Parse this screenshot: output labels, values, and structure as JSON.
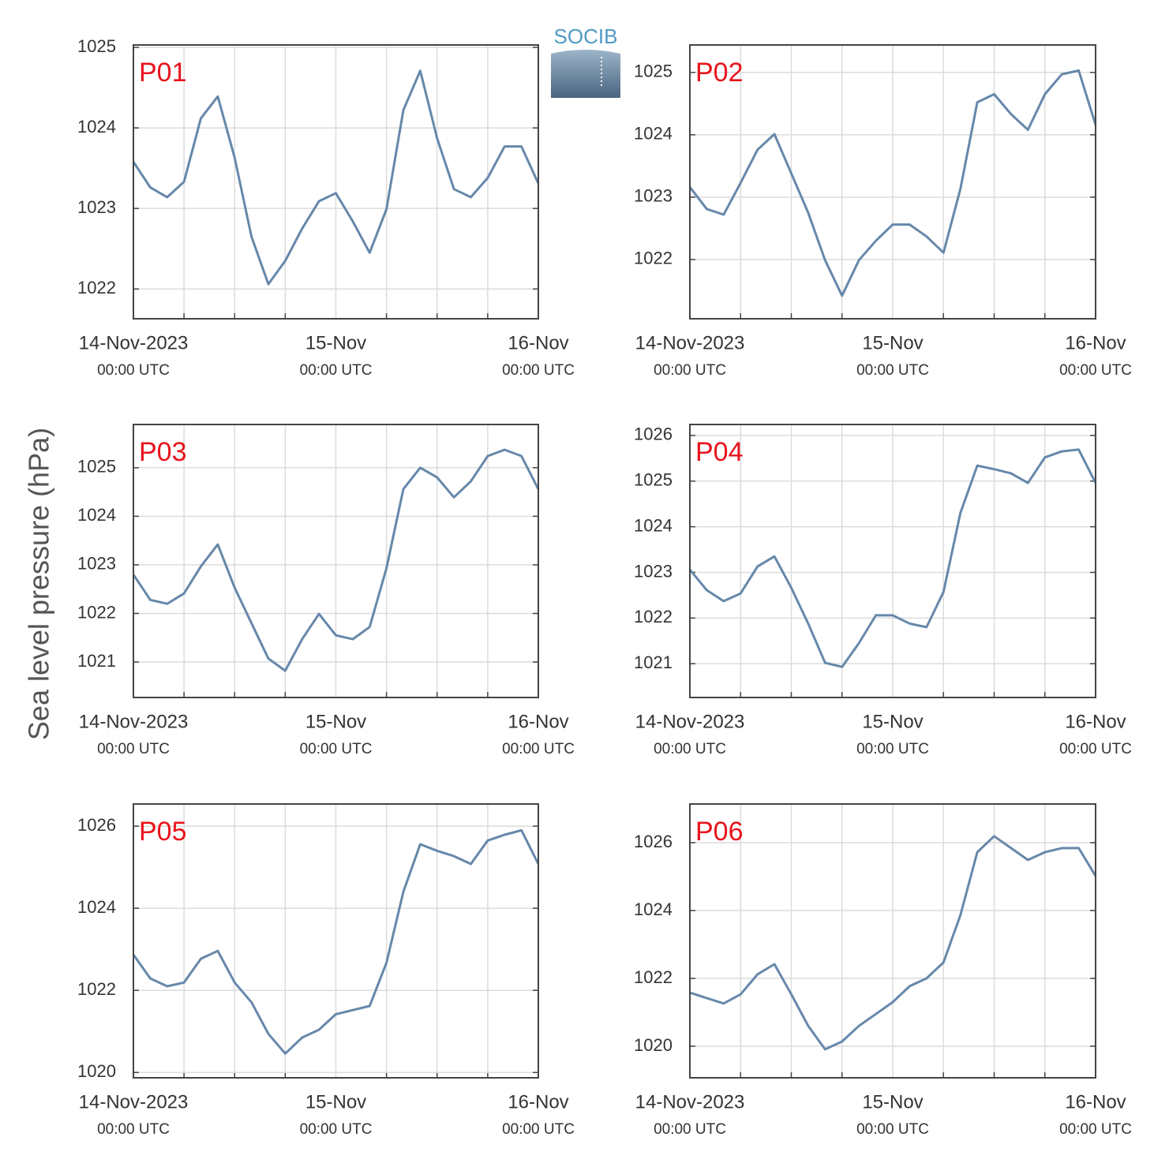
{
  "ylabel": "Sea level pressure (hPa)",
  "logo": "SOCIB",
  "chart_data": [
    {
      "type": "line",
      "title": "P01",
      "color": "#6688aa",
      "x": [
        "2023-11-14T00:00",
        "2023-11-14T02:00",
        "2023-11-14T04:00",
        "2023-11-14T06:00",
        "2023-11-14T08:00",
        "2023-11-14T10:00",
        "2023-11-14T12:00",
        "2023-11-14T14:00",
        "2023-11-14T16:00",
        "2023-11-14T18:00",
        "2023-11-14T20:00",
        "2023-11-14T22:00",
        "2023-11-15T00:00",
        "2023-11-15T02:00",
        "2023-11-15T04:00",
        "2023-11-15T06:00",
        "2023-11-15T08:00",
        "2023-11-15T10:00",
        "2023-11-15T12:00",
        "2023-11-15T14:00",
        "2023-11-15T16:00",
        "2023-11-15T18:00",
        "2023-11-15T20:00",
        "2023-11-15T22:00",
        "2023-11-16T00:00"
      ],
      "values": [
        1023.58,
        1023.26,
        1023.14,
        1023.33,
        1024.12,
        1024.39,
        1023.63,
        1022.65,
        1022.06,
        1022.35,
        1022.75,
        1023.09,
        1023.19,
        1022.84,
        1022.45,
        1022.99,
        1024.22,
        1024.71,
        1023.87,
        1023.24,
        1023.14,
        1023.38,
        1023.77,
        1023.77,
        1023.31
      ],
      "xlim": [
        "2023-11-14T00:00",
        "2023-11-16T00:00"
      ],
      "xticks": [
        {
          "value": "2023-11-14T00:00",
          "label": "14-Nov-2023",
          "sublabel": "00:00 UTC"
        },
        {
          "value": "2023-11-15T00:00",
          "label": "15-Nov",
          "sublabel": "00:00 UTC"
        },
        {
          "value": "2023-11-16T00:00",
          "label": "16-Nov",
          "sublabel": "00:00 UTC"
        }
      ],
      "xminor": [
        "2023-11-14T06:00",
        "2023-11-14T12:00",
        "2023-11-14T18:00",
        "2023-11-15T06:00",
        "2023-11-15T12:00",
        "2023-11-15T18:00"
      ],
      "ylim": [
        1021.63,
        1025.03
      ],
      "yticks": [
        1022,
        1023,
        1024,
        1025
      ],
      "grid": true
    },
    {
      "type": "line",
      "title": "P02",
      "color": "#6688aa",
      "x": [
        "2023-11-14T00:00",
        "2023-11-14T02:00",
        "2023-11-14T04:00",
        "2023-11-14T06:00",
        "2023-11-14T08:00",
        "2023-11-14T10:00",
        "2023-11-14T12:00",
        "2023-11-14T14:00",
        "2023-11-14T16:00",
        "2023-11-14T18:00",
        "2023-11-14T20:00",
        "2023-11-14T22:00",
        "2023-11-15T00:00",
        "2023-11-15T02:00",
        "2023-11-15T04:00",
        "2023-11-15T06:00",
        "2023-11-15T08:00",
        "2023-11-15T10:00",
        "2023-11-15T12:00",
        "2023-11-15T14:00",
        "2023-11-15T16:00",
        "2023-11-15T18:00",
        "2023-11-15T20:00",
        "2023-11-15T22:00",
        "2023-11-16T00:00"
      ],
      "values": [
        1023.16,
        1022.81,
        1022.72,
        1023.23,
        1023.76,
        1024.01,
        1023.38,
        1022.75,
        1021.99,
        1021.42,
        1021.99,
        1022.3,
        1022.56,
        1022.56,
        1022.37,
        1022.11,
        1023.13,
        1024.52,
        1024.65,
        1024.33,
        1024.08,
        1024.65,
        1024.97,
        1025.03,
        1024.16
      ],
      "xlim": [
        "2023-11-14T00:00",
        "2023-11-16T00:00"
      ],
      "xticks": [
        {
          "value": "2023-11-14T00:00",
          "label": "14-Nov-2023",
          "sublabel": "00:00 UTC"
        },
        {
          "value": "2023-11-15T00:00",
          "label": "15-Nov",
          "sublabel": "00:00 UTC"
        },
        {
          "value": "2023-11-16T00:00",
          "label": "16-Nov",
          "sublabel": "00:00 UTC"
        }
      ],
      "xminor": [
        "2023-11-14T06:00",
        "2023-11-14T12:00",
        "2023-11-14T18:00",
        "2023-11-15T06:00",
        "2023-11-15T12:00",
        "2023-11-15T18:00"
      ],
      "ylim": [
        1021.05,
        1025.44
      ],
      "yticks": [
        1022,
        1023,
        1024,
        1025
      ],
      "grid": true
    },
    {
      "type": "line",
      "title": "P03",
      "color": "#6688aa",
      "x": [
        "2023-11-14T00:00",
        "2023-11-14T02:00",
        "2023-11-14T04:00",
        "2023-11-14T06:00",
        "2023-11-14T08:00",
        "2023-11-14T10:00",
        "2023-11-14T12:00",
        "2023-11-14T14:00",
        "2023-11-14T16:00",
        "2023-11-14T18:00",
        "2023-11-14T20:00",
        "2023-11-14T22:00",
        "2023-11-15T00:00",
        "2023-11-15T02:00",
        "2023-11-15T04:00",
        "2023-11-15T06:00",
        "2023-11-15T08:00",
        "2023-11-15T10:00",
        "2023-11-15T12:00",
        "2023-11-15T14:00",
        "2023-11-15T16:00",
        "2023-11-15T18:00",
        "2023-11-15T20:00",
        "2023-11-15T22:00",
        "2023-11-16T00:00"
      ],
      "values": [
        1022.8,
        1022.28,
        1022.2,
        1022.41,
        1022.97,
        1023.42,
        1022.53,
        1021.8,
        1021.07,
        1020.82,
        1021.47,
        1021.99,
        1021.55,
        1021.47,
        1021.72,
        1022.93,
        1024.56,
        1025.0,
        1024.8,
        1024.39,
        1024.72,
        1025.24,
        1025.37,
        1025.24,
        1024.56
      ],
      "xlim": [
        "2023-11-14T00:00",
        "2023-11-16T00:00"
      ],
      "xticks": [
        {
          "value": "2023-11-14T00:00",
          "label": "14-Nov-2023",
          "sublabel": "00:00 UTC"
        },
        {
          "value": "2023-11-15T00:00",
          "label": "15-Nov",
          "sublabel": "00:00 UTC"
        },
        {
          "value": "2023-11-16T00:00",
          "label": "16-Nov",
          "sublabel": "00:00 UTC"
        }
      ],
      "xminor": [
        "2023-11-14T06:00",
        "2023-11-14T12:00",
        "2023-11-14T18:00",
        "2023-11-15T06:00",
        "2023-11-15T12:00",
        "2023-11-15T18:00"
      ],
      "ylim": [
        1020.27,
        1025.89
      ],
      "yticks": [
        1021,
        1022,
        1023,
        1024,
        1025
      ],
      "grid": true
    },
    {
      "type": "line",
      "title": "P04",
      "color": "#6688aa",
      "x": [
        "2023-11-14T00:00",
        "2023-11-14T02:00",
        "2023-11-14T04:00",
        "2023-11-14T06:00",
        "2023-11-14T08:00",
        "2023-11-14T10:00",
        "2023-11-14T12:00",
        "2023-11-14T14:00",
        "2023-11-14T16:00",
        "2023-11-14T18:00",
        "2023-11-14T20:00",
        "2023-11-14T22:00",
        "2023-11-15T00:00",
        "2023-11-15T02:00",
        "2023-11-15T04:00",
        "2023-11-15T06:00",
        "2023-11-15T08:00",
        "2023-11-15T10:00",
        "2023-11-15T12:00",
        "2023-11-15T14:00",
        "2023-11-15T16:00",
        "2023-11-15T18:00",
        "2023-11-15T20:00",
        "2023-11-15T22:00",
        "2023-11-16T00:00"
      ],
      "values": [
        1023.06,
        1022.61,
        1022.37,
        1022.54,
        1023.13,
        1023.35,
        1022.66,
        1021.88,
        1021.02,
        1020.93,
        1021.45,
        1022.06,
        1022.06,
        1021.88,
        1021.8,
        1022.57,
        1024.3,
        1025.34,
        1025.26,
        1025.17,
        1024.96,
        1025.52,
        1025.65,
        1025.69,
        1024.96
      ],
      "xlim": [
        "2023-11-14T00:00",
        "2023-11-16T00:00"
      ],
      "xticks": [
        {
          "value": "2023-11-14T00:00",
          "label": "14-Nov-2023",
          "sublabel": "00:00 UTC"
        },
        {
          "value": "2023-11-15T00:00",
          "label": "15-Nov",
          "sublabel": "00:00 UTC"
        },
        {
          "value": "2023-11-16T00:00",
          "label": "16-Nov",
          "sublabel": "00:00 UTC"
        }
      ],
      "xminor": [
        "2023-11-14T06:00",
        "2023-11-14T12:00",
        "2023-11-14T18:00",
        "2023-11-15T06:00",
        "2023-11-15T12:00",
        "2023-11-15T18:00"
      ],
      "ylim": [
        1020.26,
        1026.24
      ],
      "yticks": [
        1021,
        1022,
        1023,
        1024,
        1025,
        1026
      ],
      "grid": true
    },
    {
      "type": "line",
      "title": "P05",
      "color": "#6688aa",
      "x": [
        "2023-11-14T00:00",
        "2023-11-14T02:00",
        "2023-11-14T04:00",
        "2023-11-14T06:00",
        "2023-11-14T08:00",
        "2023-11-14T10:00",
        "2023-11-14T12:00",
        "2023-11-14T14:00",
        "2023-11-14T16:00",
        "2023-11-14T18:00",
        "2023-11-14T20:00",
        "2023-11-14T22:00",
        "2023-11-15T00:00",
        "2023-11-15T02:00",
        "2023-11-15T04:00",
        "2023-11-15T06:00",
        "2023-11-15T08:00",
        "2023-11-15T10:00",
        "2023-11-15T12:00",
        "2023-11-15T14:00",
        "2023-11-15T16:00",
        "2023-11-15T18:00",
        "2023-11-15T20:00",
        "2023-11-15T22:00",
        "2023-11-16T00:00"
      ],
      "values": [
        1022.87,
        1022.29,
        1022.1,
        1022.19,
        1022.77,
        1022.96,
        1022.19,
        1021.71,
        1020.94,
        1020.46,
        1020.85,
        1021.04,
        1021.42,
        1021.52,
        1021.62,
        1022.67,
        1024.4,
        1025.56,
        1025.4,
        1025.27,
        1025.08,
        1025.65,
        1025.79,
        1025.9,
        1025.08
      ],
      "xlim": [
        "2023-11-14T00:00",
        "2023-11-16T00:00"
      ],
      "xticks": [
        {
          "value": "2023-11-14T00:00",
          "label": "14-Nov-2023",
          "sublabel": "00:00 UTC"
        },
        {
          "value": "2023-11-15T00:00",
          "label": "15-Nov",
          "sublabel": "00:00 UTC"
        },
        {
          "value": "2023-11-16T00:00",
          "label": "16-Nov",
          "sublabel": "00:00 UTC"
        }
      ],
      "xminor": [
        "2023-11-14T06:00",
        "2023-11-14T12:00",
        "2023-11-14T18:00",
        "2023-11-15T06:00",
        "2023-11-15T12:00",
        "2023-11-15T18:00"
      ],
      "ylim": [
        1019.87,
        1026.54
      ],
      "yticks": [
        1020,
        1022,
        1024,
        1026
      ],
      "grid": true
    },
    {
      "type": "line",
      "title": "P06",
      "color": "#6688aa",
      "x": [
        "2023-11-14T00:00",
        "2023-11-14T02:00",
        "2023-11-14T04:00",
        "2023-11-14T06:00",
        "2023-11-14T08:00",
        "2023-11-14T10:00",
        "2023-11-14T12:00",
        "2023-11-14T14:00",
        "2023-11-14T16:00",
        "2023-11-14T18:00",
        "2023-11-14T20:00",
        "2023-11-14T22:00",
        "2023-11-15T00:00",
        "2023-11-15T02:00",
        "2023-11-15T04:00",
        "2023-11-15T06:00",
        "2023-11-15T08:00",
        "2023-11-15T10:00",
        "2023-11-15T12:00",
        "2023-11-15T14:00",
        "2023-11-15T16:00",
        "2023-11-15T18:00",
        "2023-11-15T20:00",
        "2023-11-15T22:00",
        "2023-11-16T00:00"
      ],
      "values": [
        1021.58,
        1021.42,
        1021.26,
        1021.53,
        1022.12,
        1022.42,
        1021.53,
        1020.6,
        1019.91,
        1020.14,
        1020.6,
        1020.95,
        1021.3,
        1021.77,
        1022.0,
        1022.47,
        1023.86,
        1025.72,
        1026.19,
        1025.84,
        1025.49,
        1025.72,
        1025.84,
        1025.84,
        1025.02
      ],
      "xlim": [
        "2023-11-14T00:00",
        "2023-11-16T00:00"
      ],
      "xticks": [
        {
          "value": "2023-11-14T00:00",
          "label": "14-Nov-2023",
          "sublabel": "00:00 UTC"
        },
        {
          "value": "2023-11-15T00:00",
          "label": "15-Nov",
          "sublabel": "00:00 UTC"
        },
        {
          "value": "2023-11-16T00:00",
          "label": "16-Nov",
          "sublabel": "00:00 UTC"
        }
      ],
      "xminor": [
        "2023-11-14T06:00",
        "2023-11-14T12:00",
        "2023-11-14T18:00",
        "2023-11-15T06:00",
        "2023-11-15T12:00",
        "2023-11-15T18:00"
      ],
      "ylim": [
        1019.07,
        1027.14
      ],
      "yticks": [
        1020,
        1022,
        1024,
        1026
      ],
      "grid": true
    }
  ]
}
